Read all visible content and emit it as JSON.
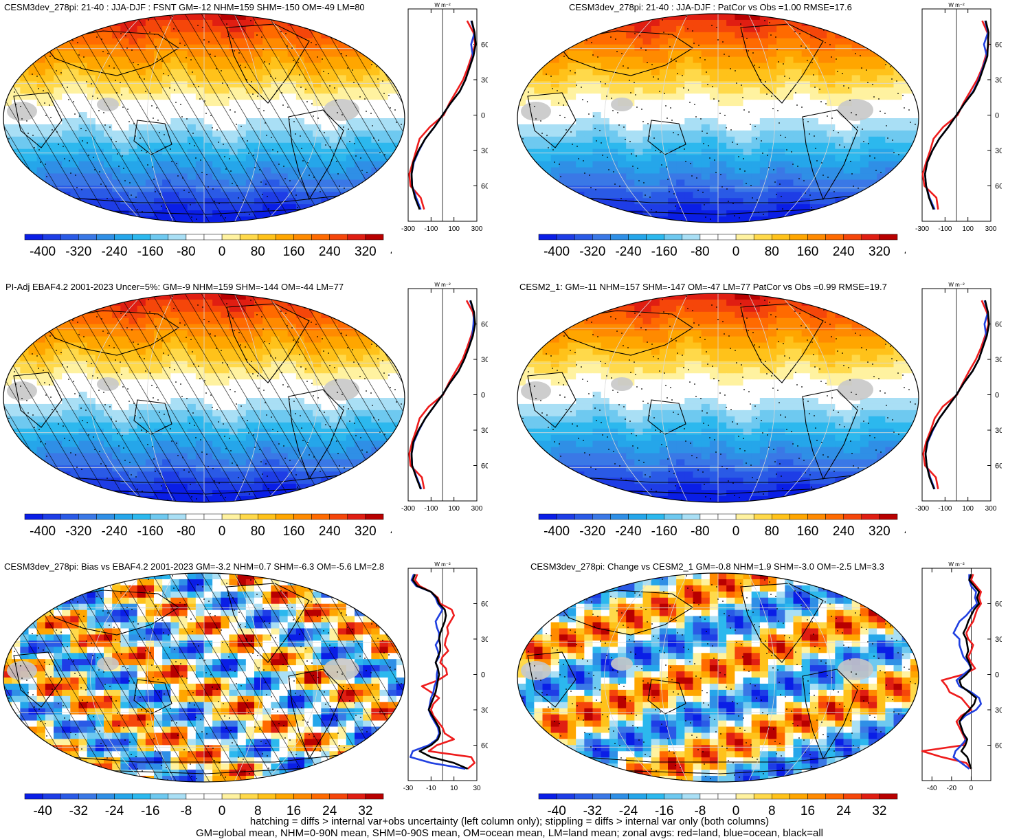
{
  "colors": {
    "ocean_line": "#1f3fe0",
    "land_line": "#ee1c1c",
    "all_line": "#000000",
    "missing": "#c8c8c8",
    "palette": [
      "#0a1ee6",
      "#1e3de6",
      "#2a5ae6",
      "#3a78e6",
      "#2f8fe6",
      "#25a6ea",
      "#2cb8ee",
      "#6ec9f0",
      "#a9dff5",
      "#ffffff",
      "#ffffff",
      "#fff2a0",
      "#ffd94a",
      "#ffc21a",
      "#ffa600",
      "#ff8a00",
      "#ff6a00",
      "#f5460a",
      "#e01e12",
      "#b80000"
    ]
  },
  "panels": [
    {
      "id": "p1",
      "title": "CESM3dev_278pi: 21-40 : JJA-DJF : FSNT GM=-12 NHM=159 SHM=-150 OM=-49 LM=80",
      "hatching": true,
      "colorbar_labels": [
        "-400",
        "-320",
        "-240",
        "-160",
        "-80",
        "0",
        "80",
        "160",
        "240",
        "320",
        "400"
      ],
      "units": "W m⁻²"
    },
    {
      "id": "p2",
      "title": "CESM3dev_278pi: 21-40 : JJA-DJF : PatCor vs Obs =1.00 RMSE=17.6",
      "hatching": false,
      "colorbar_labels": [
        "-400",
        "-320",
        "-240",
        "-160",
        "-80",
        "0",
        "80",
        "160",
        "240",
        "320",
        "400"
      ],
      "units": "W m⁻²"
    },
    {
      "id": "p3",
      "title": "PI-Adj EBAF4.2 2001-2023 Uncer=5%: GM=-9 NHM=159 SHM=-144 OM=-44 LM=77",
      "hatching": true,
      "colorbar_labels": [
        "-400",
        "-320",
        "-240",
        "-160",
        "-80",
        "0",
        "80",
        "160",
        "240",
        "320",
        "400"
      ],
      "units": "W m⁻²"
    },
    {
      "id": "p4",
      "title": "CESM2_1: GM=-11 NHM=157 SHM=-147 OM=-47 LM=77 PatCor vs Obs =0.99 RMSE=19.7",
      "hatching": false,
      "colorbar_labels": [
        "-400",
        "-320",
        "-240",
        "-160",
        "-80",
        "0",
        "80",
        "160",
        "240",
        "320",
        "400"
      ],
      "units": "W m⁻²"
    },
    {
      "id": "p5",
      "title": "CESM3dev_278pi: Bias vs EBAF4.2 2001-2023 GM=-3.2 NHM=0.7 SHM=-6.3 OM=-5.6 LM=2.8",
      "hatching": true,
      "colorbar_labels": [
        "-40",
        "-32",
        "-24",
        "-16",
        "-8",
        "0",
        "8",
        "16",
        "24",
        "32",
        "40"
      ],
      "units": "W m⁻²"
    },
    {
      "id": "p6",
      "title": "CESM3dev_278pi: Change vs CESM2_1 GM=-0.8 NHM=1.9 SHM=-3.0 OM=-2.5 LM=3.3",
      "hatching": false,
      "colorbar_labels": [
        "-40",
        "-32",
        "-24",
        "-16",
        "-8",
        "0",
        "8",
        "16",
        "24",
        "32",
        "40"
      ],
      "units": "W m⁻²"
    }
  ],
  "chart_data": [
    {
      "type": "line",
      "panel": "p1",
      "xlim": [
        -300,
        300
      ],
      "x_ticks": [
        "-300",
        "-100",
        "100",
        "300"
      ],
      "y_ticks": [
        "60N",
        "30N",
        "0",
        "30S",
        "60S"
      ],
      "ylim": [
        -90,
        90
      ],
      "lat": [
        80,
        70,
        60,
        50,
        40,
        30,
        20,
        10,
        0,
        -10,
        -20,
        -30,
        -40,
        -50,
        -60,
        -70,
        -80
      ],
      "series": [
        {
          "name": "all",
          "values": [
            255,
            280,
            290,
            270,
            235,
            200,
            150,
            70,
            0,
            -70,
            -150,
            -210,
            -255,
            -270,
            -265,
            -240,
            -200
          ]
        },
        {
          "name": "ocean",
          "values": [
            250,
            280,
            250,
            265,
            235,
            200,
            150,
            70,
            0,
            -70,
            -150,
            -205,
            -250,
            -270,
            -265,
            -230,
            -190
          ]
        },
        {
          "name": "land",
          "values": [
            215,
            270,
            285,
            255,
            220,
            180,
            120,
            60,
            10,
            -110,
            -200,
            -230,
            -260,
            -290,
            -280,
            -190,
            -160
          ]
        }
      ]
    },
    {
      "type": "line",
      "panel": "p2",
      "xlim": [
        -300,
        300
      ],
      "x_ticks": [
        "-300",
        "-100",
        "100",
        "300"
      ],
      "y_ticks": [
        "60N",
        "30N",
        "0",
        "30S",
        "60S"
      ],
      "ylim": [
        -90,
        90
      ],
      "lat": [
        80,
        70,
        60,
        50,
        40,
        30,
        20,
        10,
        0,
        -10,
        -20,
        -30,
        -40,
        -50,
        -60,
        -70,
        -80
      ],
      "series": [
        {
          "name": "all",
          "values": [
            255,
            280,
            275,
            270,
            235,
            200,
            150,
            70,
            0,
            -70,
            -150,
            -210,
            -255,
            -275,
            -265,
            -240,
            -200
          ]
        },
        {
          "name": "ocean",
          "values": [
            250,
            275,
            240,
            265,
            230,
            195,
            145,
            70,
            0,
            -70,
            -150,
            -210,
            -255,
            -275,
            -265,
            -235,
            -190
          ]
        },
        {
          "name": "land",
          "values": [
            225,
            270,
            280,
            255,
            225,
            180,
            120,
            60,
            10,
            -115,
            -200,
            -230,
            -265,
            -295,
            -280,
            -175,
            -160
          ]
        }
      ]
    },
    {
      "type": "line",
      "panel": "p3",
      "xlim": [
        -300,
        300
      ],
      "x_ticks": [
        "-300",
        "-100",
        "100",
        "300"
      ],
      "y_ticks": [
        "60N",
        "30N",
        "0",
        "30S",
        "60S"
      ],
      "ylim": [
        -90,
        90
      ],
      "lat": [
        80,
        70,
        60,
        50,
        40,
        30,
        20,
        10,
        0,
        -10,
        -20,
        -30,
        -40,
        -50,
        -60,
        -70,
        -80
      ],
      "series": [
        {
          "name": "all",
          "values": [
            245,
            275,
            285,
            265,
            230,
            190,
            140,
            65,
            0,
            -75,
            -150,
            -210,
            -255,
            -270,
            -265,
            -230,
            -190
          ]
        },
        {
          "name": "ocean",
          "values": [
            240,
            275,
            270,
            260,
            230,
            190,
            140,
            65,
            0,
            -75,
            -150,
            -205,
            -250,
            -270,
            -265,
            -225,
            -185
          ]
        },
        {
          "name": "land",
          "values": [
            210,
            265,
            280,
            250,
            215,
            175,
            115,
            55,
            5,
            -120,
            -200,
            -230,
            -265,
            -290,
            -280,
            -180,
            -160
          ]
        }
      ]
    },
    {
      "type": "line",
      "panel": "p4",
      "xlim": [
        -300,
        300
      ],
      "x_ticks": [
        "-300",
        "-100",
        "100",
        "300"
      ],
      "y_ticks": [
        "60N",
        "30N",
        "0",
        "30S",
        "60S"
      ],
      "ylim": [
        -90,
        90
      ],
      "lat": [
        80,
        70,
        60,
        50,
        40,
        30,
        20,
        10,
        0,
        -10,
        -20,
        -30,
        -40,
        -50,
        -60,
        -70,
        -80
      ],
      "series": [
        {
          "name": "all",
          "values": [
            250,
            275,
            285,
            265,
            230,
            195,
            140,
            65,
            0,
            -75,
            -150,
            -210,
            -255,
            -270,
            -260,
            -235,
            -195
          ]
        },
        {
          "name": "ocean",
          "values": [
            245,
            275,
            245,
            260,
            230,
            195,
            140,
            65,
            0,
            -75,
            -150,
            -205,
            -250,
            -270,
            -260,
            -230,
            -190
          ]
        },
        {
          "name": "land",
          "values": [
            220,
            265,
            280,
            250,
            215,
            170,
            110,
            55,
            5,
            -120,
            -190,
            -225,
            -265,
            -290,
            -275,
            -180,
            -160
          ]
        }
      ]
    },
    {
      "type": "line",
      "panel": "p5",
      "xlim": [
        -30,
        30
      ],
      "x_ticks": [
        "-30",
        "-10",
        "10",
        "30"
      ],
      "y_ticks": [
        "60N",
        "30N",
        "0",
        "30S",
        "60S"
      ],
      "ylim": [
        -90,
        90
      ],
      "lat": [
        85,
        80,
        75,
        70,
        65,
        60,
        55,
        50,
        45,
        40,
        35,
        30,
        25,
        20,
        15,
        10,
        5,
        0,
        -5,
        -10,
        -15,
        -20,
        -25,
        -30,
        -35,
        -40,
        -45,
        -50,
        -55,
        -60,
        -65,
        -70,
        -75,
        -80
      ],
      "series": [
        {
          "name": "all",
          "values": [
            -24,
            -26,
            -22,
            -10,
            -5,
            -3,
            2,
            3,
            2,
            0,
            -2,
            -3,
            -2,
            -2,
            -4,
            -6,
            -4,
            -3,
            -4,
            -5,
            -6,
            -8,
            -10,
            -12,
            -9,
            -6,
            -3,
            -2,
            -4,
            -10,
            -20,
            -10,
            10,
            22
          ]
        },
        {
          "name": "ocean",
          "values": [
            -25,
            -27,
            -23,
            -10,
            -6,
            -4,
            0,
            -3,
            -6,
            -5,
            -3,
            -3,
            -6,
            -4,
            -3,
            -6,
            -4,
            -5,
            -5,
            -7,
            -8,
            -10,
            -11,
            -12,
            -10,
            -7,
            -4,
            -3,
            -5,
            -12,
            -26,
            -28,
            -10,
            20
          ]
        },
        {
          "name": "land",
          "values": [
            -22,
            -24,
            -20,
            -10,
            -4,
            -2,
            8,
            10,
            7,
            4,
            5,
            3,
            2,
            5,
            0,
            -2,
            3,
            4,
            -4,
            -18,
            -10,
            -3,
            -8,
            -10,
            -8,
            -4,
            0,
            2,
            10,
            -5,
            -12,
            25,
            28,
            22
          ]
        }
      ]
    },
    {
      "type": "line",
      "panel": "p6",
      "xlim": [
        -50,
        20
      ],
      "x_ticks": [
        "-40",
        "-20",
        "0"
      ],
      "y_ticks": [
        "60N",
        "30N",
        "0",
        "30S",
        "60S"
      ],
      "ylim": [
        -90,
        90
      ],
      "lat": [
        85,
        80,
        75,
        70,
        65,
        60,
        55,
        50,
        45,
        40,
        35,
        30,
        25,
        20,
        15,
        10,
        5,
        0,
        -5,
        -10,
        -15,
        -20,
        -25,
        -30,
        -35,
        -40,
        -45,
        -50,
        -55,
        -60,
        -65,
        -70,
        -75,
        -80
      ],
      "series": [
        {
          "name": "all",
          "values": [
            0,
            -2,
            3,
            8,
            6,
            8,
            3,
            0,
            -3,
            -5,
            -8,
            -5,
            -4,
            -3,
            -5,
            -2,
            0,
            -5,
            -12,
            -10,
            -2,
            5,
            3,
            -2,
            -8,
            -12,
            -10,
            -8,
            -4,
            -6,
            -10,
            -4,
            -2,
            0
          ]
        },
        {
          "name": "ocean",
          "values": [
            -2,
            -2,
            0,
            5,
            4,
            6,
            0,
            -5,
            -12,
            -15,
            -18,
            -12,
            -12,
            -10,
            -8,
            -3,
            0,
            -8,
            -15,
            -12,
            0,
            8,
            10,
            5,
            -6,
            -12,
            -10,
            -8,
            -5,
            -10,
            -16,
            -18,
            -10,
            -2
          ]
        },
        {
          "name": "land",
          "values": [
            2,
            0,
            5,
            10,
            8,
            10,
            6,
            4,
            2,
            -2,
            -5,
            -3,
            2,
            0,
            -3,
            0,
            4,
            -8,
            -30,
            -25,
            -22,
            -10,
            -5,
            0,
            -10,
            -15,
            -12,
            -9,
            -6,
            -8,
            -50,
            -30,
            -5,
            0
          ]
        }
      ]
    }
  ],
  "footnote": {
    "line1": "hatching = diffs > internal var+obs uncertainty (left column only); stippling = diffs > internal var only (both columns)",
    "line2": "GM=global mean, NHM=0-90N mean, SHM=0-90S mean, OM=ocean mean, LM=land mean; zonal avgs: red=land, blue=ocean, black=all"
  }
}
